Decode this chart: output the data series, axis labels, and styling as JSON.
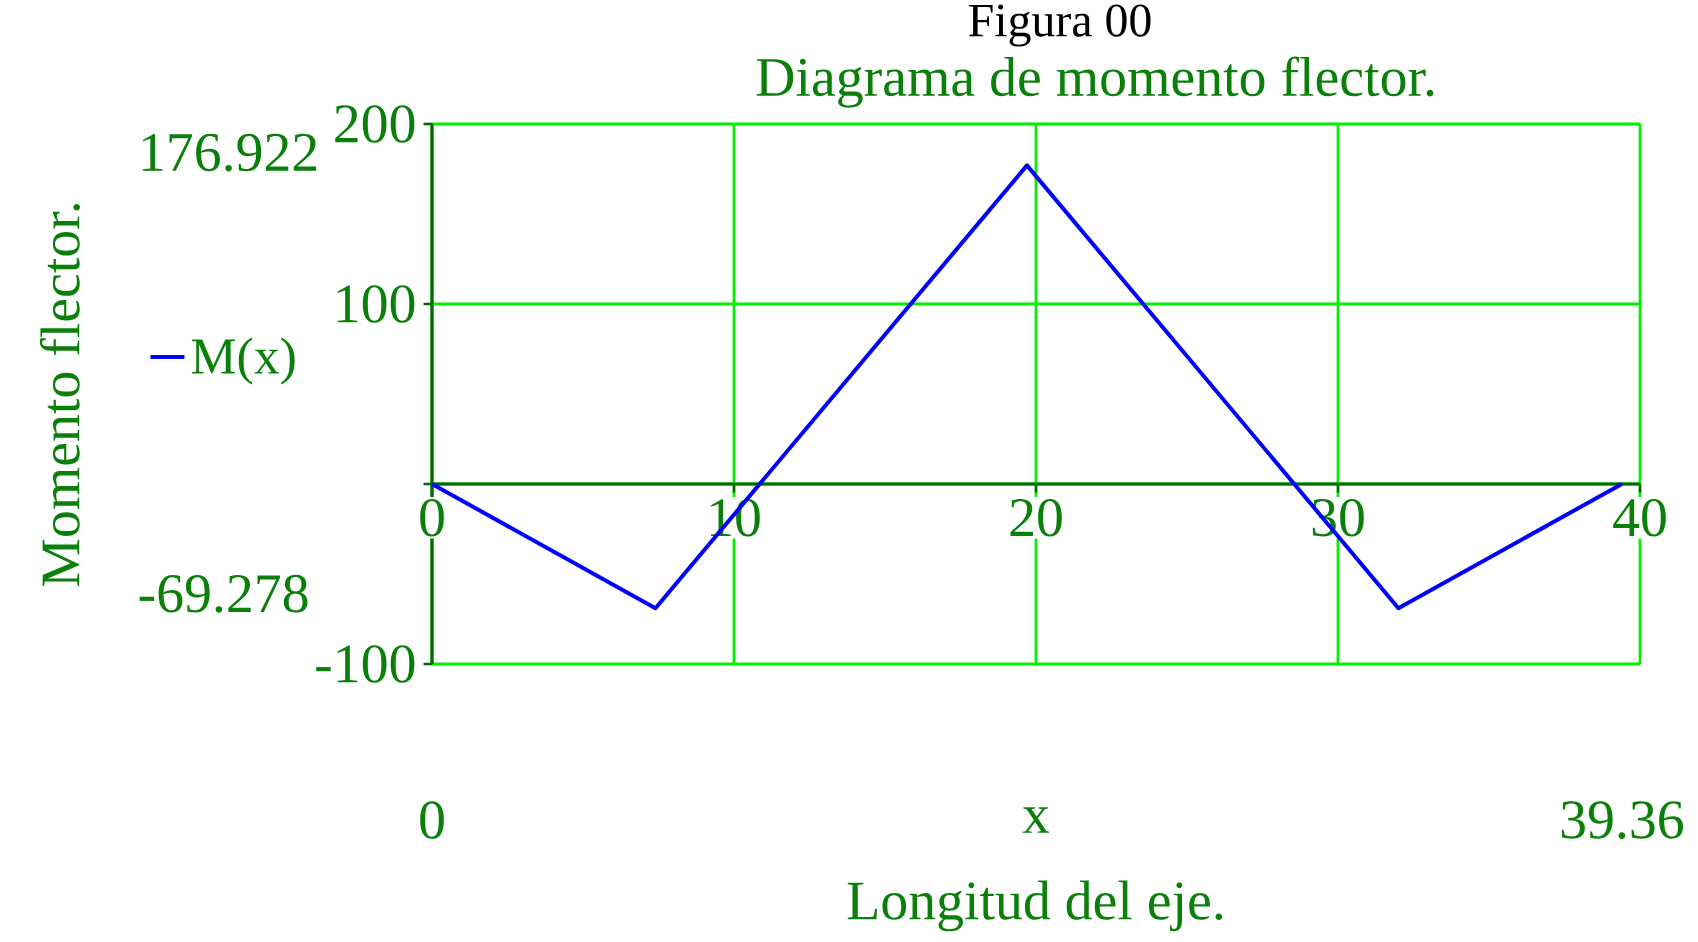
{
  "chart_data": {
    "type": "line",
    "title": "Figura 00",
    "subtitle": "Diagrama de momento flector.",
    "xlabel": "Longitud del eje.",
    "ylabel": "Momento flector.",
    "x": [
      0,
      7.4,
      19.7,
      32.0,
      39.4
    ],
    "series": [
      {
        "name": "M(x)",
        "color": "#0000ff",
        "values": [
          0,
          -69,
          177,
          -69,
          0
        ]
      }
    ],
    "xlim": [
      0,
      40
    ],
    "ylim": [
      -100,
      200
    ],
    "xticks": [
      0,
      10,
      20,
      30,
      40
    ],
    "yticks": [
      -100,
      {
        "value": 0,
        "label": null
      },
      100,
      200
    ],
    "grid": true,
    "legend": "left",
    "annotations": [
      "176.922",
      "-69.278",
      "0",
      "39.36",
      "x"
    ]
  }
}
